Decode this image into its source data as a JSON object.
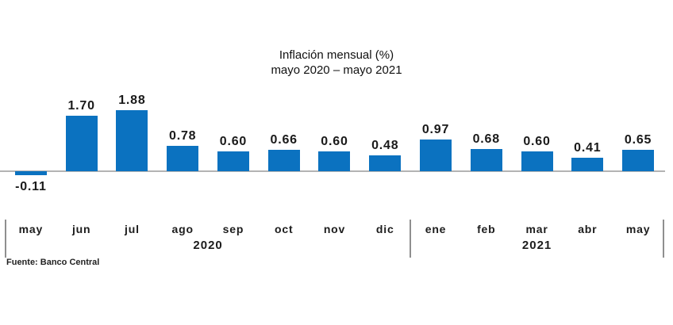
{
  "chart": {
    "title": "Inflación mensual (%)",
    "subtitle": "mayo 2020 – mayo 2021",
    "source": "Fuente: Banco Central",
    "bar_color": "#0b72c0",
    "axis_color": "#b3b3b3"
  },
  "chart_data": {
    "type": "bar",
    "title": "Inflación mensual (%)",
    "subtitle": "mayo 2020 – mayo 2021",
    "categories": [
      "may",
      "jun",
      "jul",
      "ago",
      "sep",
      "oct",
      "nov",
      "dic",
      "ene",
      "feb",
      "mar",
      "abr",
      "may"
    ],
    "values": [
      -0.11,
      1.7,
      1.88,
      0.78,
      0.6,
      0.66,
      0.6,
      0.48,
      0.97,
      0.68,
      0.6,
      0.41,
      0.65
    ],
    "value_labels": [
      "-0.11",
      "1.70",
      "1.88",
      "0.78",
      "0.60",
      "0.66",
      "0.60",
      "0.48",
      "0.97",
      "0.68",
      "0.60",
      "0.41",
      "0.65"
    ],
    "year_groups": [
      {
        "label": "2020",
        "span": 8
      },
      {
        "label": "2021",
        "span": 5
      }
    ],
    "source": "Fuente: Banco Central",
    "xlabel": "",
    "ylabel": "",
    "ylim": [
      -0.3,
      2.1
    ],
    "grid": false,
    "legend": false,
    "bar_color": "#0b72c0"
  }
}
